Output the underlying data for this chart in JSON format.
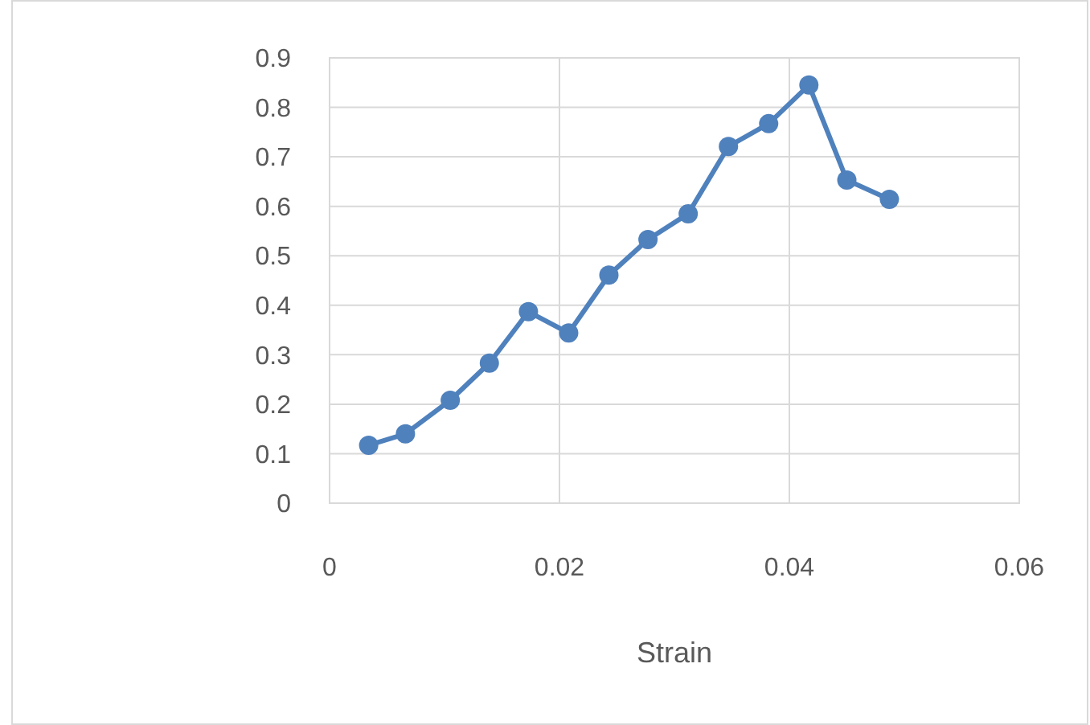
{
  "chart_data": {
    "type": "line",
    "xlabel": "Strain",
    "x": [
      0.0034,
      0.0066,
      0.0105,
      0.0139,
      0.0173,
      0.0208,
      0.0243,
      0.0277,
      0.0312,
      0.0347,
      0.0382,
      0.0417,
      0.045,
      0.0487
    ],
    "series": [
      {
        "color": "#4f81bd",
        "values": [
          0.117,
          0.14,
          0.208,
          0.283,
          0.387,
          0.344,
          0.461,
          0.533,
          0.585,
          0.721,
          0.767,
          0.845,
          0.653,
          0.614
        ]
      }
    ],
    "xlim": [
      0,
      0.06
    ],
    "xticks": [
      0,
      0.02,
      0.04,
      0.06
    ],
    "ylim": [
      0,
      0.9
    ],
    "yticks": [
      0,
      0.1,
      0.2,
      0.3,
      0.4,
      0.5,
      0.6,
      0.7,
      0.8,
      0.9
    ],
    "grid": true,
    "marker": "circle",
    "line_style": "solid"
  }
}
